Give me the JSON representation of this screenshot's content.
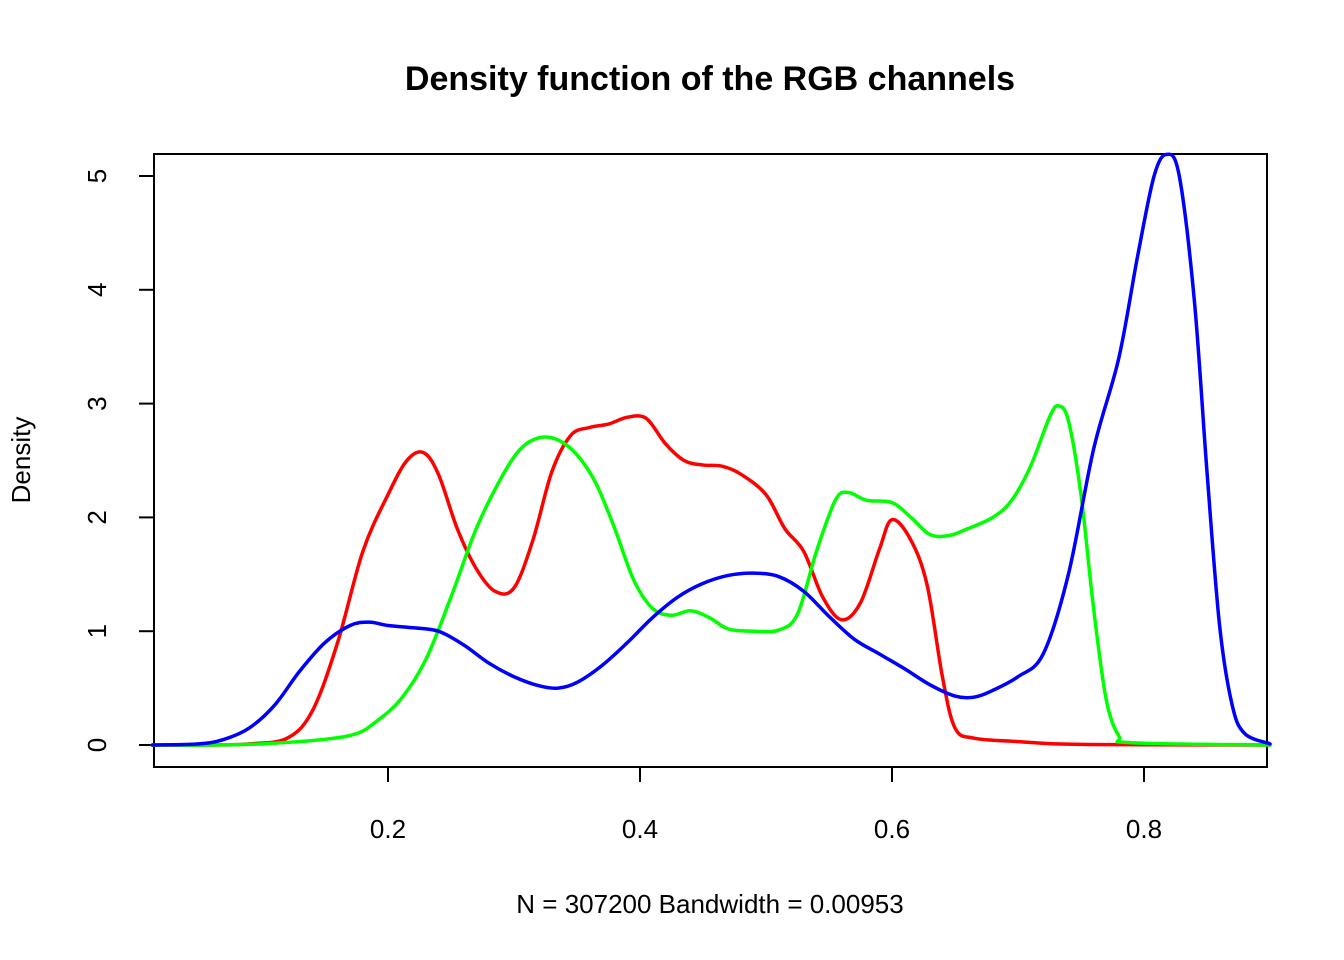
{
  "chart_data": {
    "type": "line",
    "title": "Density function of the RGB channels",
    "xlabel": "N = 307200   Bandwidth = 0.00953",
    "ylabel": "Density",
    "xlim": [
      0.013,
      0.9
    ],
    "ylim": [
      0,
      5.2
    ],
    "xticks": [
      0.2,
      0.4,
      0.6,
      0.8
    ],
    "xtick_labels": [
      "0.2",
      "0.4",
      "0.6",
      "0.8"
    ],
    "yticks": [
      0,
      1,
      2,
      3,
      4,
      5
    ],
    "ytick_labels": [
      "0",
      "1",
      "2",
      "3",
      "4",
      "5"
    ],
    "grid": false,
    "legend": "none",
    "series": [
      {
        "color": "#ff0000",
        "points": [
          [
            0.013,
            0.0
          ],
          [
            0.06,
            0.0
          ],
          [
            0.09,
            0.01
          ],
          [
            0.12,
            0.06
          ],
          [
            0.14,
            0.3
          ],
          [
            0.16,
            0.9
          ],
          [
            0.18,
            1.7
          ],
          [
            0.2,
            2.2
          ],
          [
            0.215,
            2.5
          ],
          [
            0.228,
            2.57
          ],
          [
            0.24,
            2.38
          ],
          [
            0.255,
            1.9
          ],
          [
            0.27,
            1.55
          ],
          [
            0.285,
            1.35
          ],
          [
            0.3,
            1.38
          ],
          [
            0.315,
            1.8
          ],
          [
            0.33,
            2.4
          ],
          [
            0.345,
            2.72
          ],
          [
            0.36,
            2.79
          ],
          [
            0.375,
            2.82
          ],
          [
            0.39,
            2.88
          ],
          [
            0.405,
            2.87
          ],
          [
            0.42,
            2.65
          ],
          [
            0.435,
            2.5
          ],
          [
            0.45,
            2.46
          ],
          [
            0.465,
            2.45
          ],
          [
            0.48,
            2.38
          ],
          [
            0.5,
            2.2
          ],
          [
            0.515,
            1.9
          ],
          [
            0.53,
            1.7
          ],
          [
            0.545,
            1.3
          ],
          [
            0.56,
            1.1
          ],
          [
            0.575,
            1.25
          ],
          [
            0.59,
            1.72
          ],
          [
            0.6,
            1.98
          ],
          [
            0.615,
            1.8
          ],
          [
            0.628,
            1.4
          ],
          [
            0.64,
            0.6
          ],
          [
            0.65,
            0.15
          ],
          [
            0.665,
            0.06
          ],
          [
            0.7,
            0.03
          ],
          [
            0.73,
            0.01
          ],
          [
            0.78,
            0.003
          ],
          [
            0.9,
            0.0
          ]
        ]
      },
      {
        "color": "#00ff00",
        "points": [
          [
            0.013,
            0.0
          ],
          [
            0.06,
            0.0
          ],
          [
            0.1,
            0.01
          ],
          [
            0.15,
            0.05
          ],
          [
            0.175,
            0.1
          ],
          [
            0.19,
            0.2
          ],
          [
            0.21,
            0.4
          ],
          [
            0.23,
            0.75
          ],
          [
            0.25,
            1.3
          ],
          [
            0.27,
            1.9
          ],
          [
            0.29,
            2.35
          ],
          [
            0.305,
            2.6
          ],
          [
            0.32,
            2.7
          ],
          [
            0.335,
            2.68
          ],
          [
            0.35,
            2.55
          ],
          [
            0.365,
            2.3
          ],
          [
            0.38,
            1.9
          ],
          [
            0.395,
            1.45
          ],
          [
            0.41,
            1.2
          ],
          [
            0.425,
            1.14
          ],
          [
            0.44,
            1.18
          ],
          [
            0.455,
            1.12
          ],
          [
            0.47,
            1.02
          ],
          [
            0.49,
            1.0
          ],
          [
            0.51,
            1.01
          ],
          [
            0.525,
            1.15
          ],
          [
            0.54,
            1.7
          ],
          [
            0.555,
            2.15
          ],
          [
            0.565,
            2.22
          ],
          [
            0.58,
            2.15
          ],
          [
            0.6,
            2.13
          ],
          [
            0.615,
            2.0
          ],
          [
            0.63,
            1.85
          ],
          [
            0.645,
            1.84
          ],
          [
            0.66,
            1.9
          ],
          [
            0.68,
            2.0
          ],
          [
            0.695,
            2.15
          ],
          [
            0.71,
            2.45
          ],
          [
            0.725,
            2.88
          ],
          [
            0.732,
            2.98
          ],
          [
            0.74,
            2.85
          ],
          [
            0.75,
            2.2
          ],
          [
            0.76,
            1.2
          ],
          [
            0.77,
            0.4
          ],
          [
            0.78,
            0.08
          ],
          [
            0.79,
            0.02
          ],
          [
            0.9,
            0.0
          ]
        ]
      },
      {
        "color": "#0000ff",
        "points": [
          [
            0.013,
            0.0
          ],
          [
            0.05,
            0.01
          ],
          [
            0.07,
            0.05
          ],
          [
            0.09,
            0.15
          ],
          [
            0.11,
            0.35
          ],
          [
            0.13,
            0.65
          ],
          [
            0.15,
            0.9
          ],
          [
            0.17,
            1.05
          ],
          [
            0.185,
            1.08
          ],
          [
            0.2,
            1.05
          ],
          [
            0.22,
            1.03
          ],
          [
            0.24,
            1.0
          ],
          [
            0.26,
            0.88
          ],
          [
            0.28,
            0.72
          ],
          [
            0.3,
            0.6
          ],
          [
            0.32,
            0.52
          ],
          [
            0.335,
            0.5
          ],
          [
            0.35,
            0.55
          ],
          [
            0.37,
            0.7
          ],
          [
            0.39,
            0.9
          ],
          [
            0.41,
            1.12
          ],
          [
            0.43,
            1.3
          ],
          [
            0.45,
            1.42
          ],
          [
            0.47,
            1.49
          ],
          [
            0.49,
            1.51
          ],
          [
            0.51,
            1.48
          ],
          [
            0.53,
            1.35
          ],
          [
            0.55,
            1.13
          ],
          [
            0.57,
            0.93
          ],
          [
            0.59,
            0.8
          ],
          [
            0.61,
            0.67
          ],
          [
            0.63,
            0.53
          ],
          [
            0.65,
            0.43
          ],
          [
            0.665,
            0.42
          ],
          [
            0.68,
            0.48
          ],
          [
            0.7,
            0.6
          ],
          [
            0.72,
            0.8
          ],
          [
            0.74,
            1.5
          ],
          [
            0.76,
            2.6
          ],
          [
            0.78,
            3.4
          ],
          [
            0.795,
            4.3
          ],
          [
            0.808,
            5.0
          ],
          [
            0.818,
            5.19
          ],
          [
            0.828,
            5.0
          ],
          [
            0.84,
            3.9
          ],
          [
            0.85,
            2.4
          ],
          [
            0.86,
            1.05
          ],
          [
            0.87,
            0.35
          ],
          [
            0.88,
            0.1
          ],
          [
            0.9,
            0.01
          ]
        ]
      }
    ]
  }
}
